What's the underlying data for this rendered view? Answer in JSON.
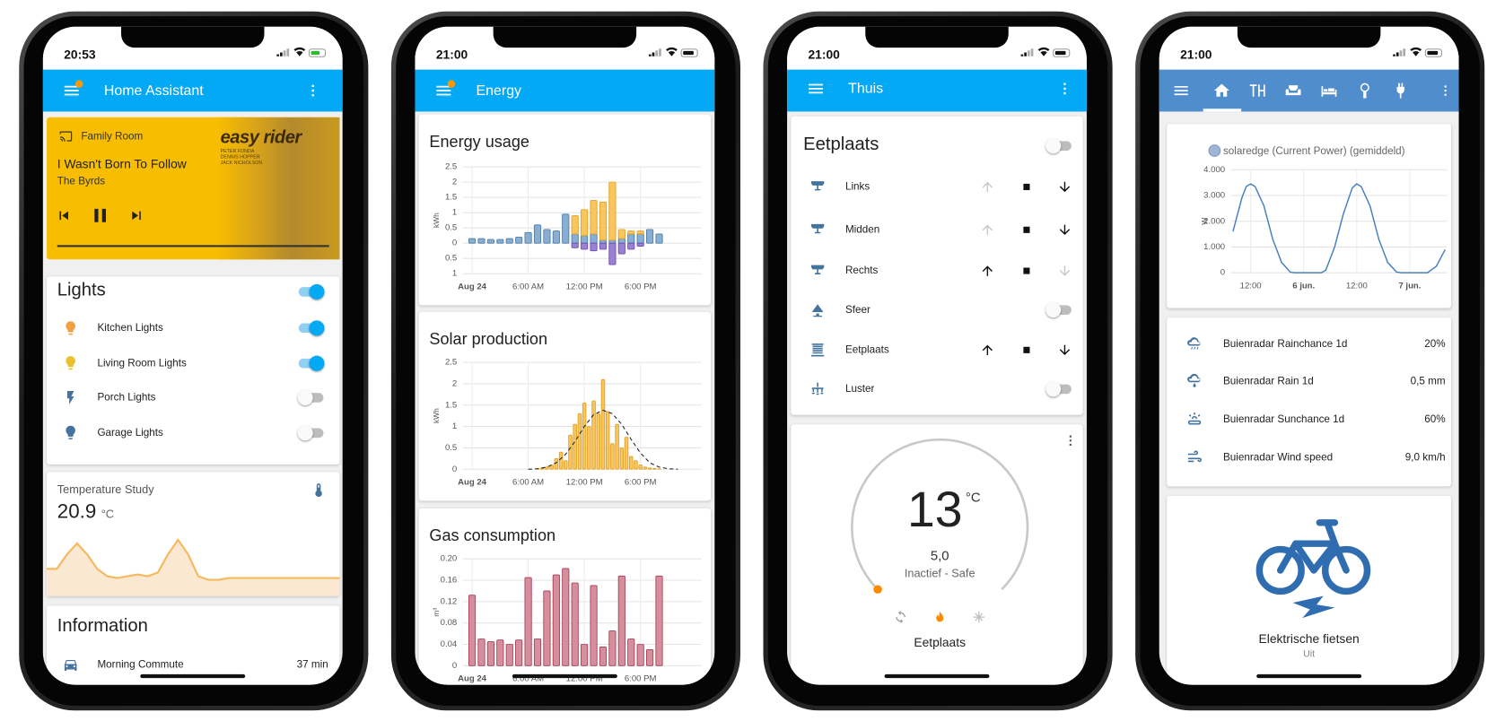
{
  "phones": [
    {
      "time": "20:53",
      "app_bar": "Home Assistant",
      "media": {
        "source": "Family Room",
        "title": "I Wasn't Born To Follow",
        "artist": "The Byrds",
        "art_title": "easy rider",
        "art_credits": [
          "PETER FONDA",
          "DENNIS HOPPER",
          "JACK NICHOLSON"
        ]
      },
      "lights": {
        "title": "Lights",
        "on": true,
        "items": [
          {
            "name": "Kitchen Lights",
            "on": true
          },
          {
            "name": "Living Room Lights",
            "on": true
          },
          {
            "name": "Porch Lights",
            "on": false
          },
          {
            "name": "Garage Lights",
            "on": false
          }
        ]
      },
      "temperature": {
        "name": "Temperature Study",
        "value": "20.9",
        "unit": "°C",
        "history": [
          21.2,
          21.2,
          21.6,
          21.9,
          21.6,
          21.2,
          21.0,
          20.95,
          21.0,
          21.05,
          21.0,
          21.1,
          21.6,
          22.0,
          21.6,
          21.0,
          20.9,
          20.9,
          20.95,
          20.95,
          20.95,
          20.95,
          20.95,
          20.95,
          20.95,
          20.95,
          20.95,
          20.95,
          20.95,
          20.95
        ]
      },
      "information": {
        "title": "Information",
        "items": [
          {
            "name": "Morning Commute",
            "value": "37 min"
          }
        ]
      }
    },
    {
      "time": "21:00",
      "app_bar": "Energy",
      "charts": [
        {
          "type": "bar",
          "title": "Energy usage",
          "y_label": "kWh",
          "stacked": true,
          "x": [
            0,
            1,
            2,
            3,
            4,
            5,
            6,
            7,
            8,
            9,
            10,
            11,
            12,
            13,
            14,
            15,
            16,
            17,
            18,
            19,
            20
          ],
          "xlim": [
            -1,
            24.5
          ],
          "xticks": [
            {
              "value": 0,
              "label": "Aug 24"
            },
            {
              "value": 6,
              "label": "6:00 AM"
            },
            {
              "value": 12,
              "label": "12:00 PM"
            },
            {
              "value": 18,
              "label": "6:00 PM"
            }
          ],
          "ylim": [
            -1,
            2.5
          ],
          "yticks": [
            {
              "value": -1,
              "label": "1"
            },
            {
              "value": -0.5,
              "label": "0.5"
            },
            0,
            0.5,
            1,
            1.5,
            2,
            2.5
          ],
          "grid": true,
          "series": [
            {
              "color": "#88afd2",
              "border_color": "#4a7ba6",
              "values": [
                0.15,
                0.15,
                0.12,
                0.12,
                0.15,
                0.2,
                0.35,
                0.6,
                0.45,
                0.4,
                0.95,
                0.3,
                0.25,
                0.3,
                0.1,
                0.1,
                0.15,
                0.3,
                0.3,
                0.45,
                0.3
              ]
            },
            {
              "color": "#f8c55e",
              "border_color": "#e39f20",
              "values": [
                0,
                0,
                0,
                0,
                0,
                0,
                0,
                0,
                0,
                0,
                0,
                0.6,
                0.85,
                1.1,
                1.25,
                1.9,
                0.3,
                0.1,
                0.1,
                0,
                0
              ]
            },
            {
              "color": "#9c80d2",
              "border_color": "#6a4bb0",
              "values": [
                0,
                0,
                0,
                0,
                0,
                0,
                0,
                0,
                0,
                0,
                0,
                -0.15,
                -0.2,
                -0.25,
                -0.2,
                -0.7,
                -0.35,
                -0.2,
                -0.1,
                0,
                0
              ]
            }
          ]
        },
        {
          "type": "bar",
          "title": "Solar production",
          "y_label": "kWh",
          "xlim": [
            -1,
            24.5
          ],
          "xticks": [
            {
              "value": 0,
              "label": "Aug 24"
            },
            {
              "value": 6,
              "label": "6:00 AM"
            },
            {
              "value": 12,
              "label": "12:00 PM"
            },
            {
              "value": 18,
              "label": "6:00 PM"
            }
          ],
          "ylim": [
            0,
            2.5
          ],
          "yticks": [
            0,
            0.5,
            1,
            1.5,
            2,
            2.5
          ],
          "grid": true,
          "series": [
            {
              "type": "bar",
              "color": "#f8c55e",
              "border_color": "#e39f20",
              "x": [
                7,
                7.5,
                8,
                8.5,
                9,
                9.5,
                10,
                10.5,
                11,
                11.5,
                12,
                12.5,
                13,
                13.5,
                14,
                14.5,
                15,
                15.5,
                16,
                16.5,
                17,
                17.5,
                18,
                18.5,
                19,
                19.5,
                20
              ],
              "values": [
                0.02,
                0.03,
                0.05,
                0.1,
                0.25,
                0.4,
                0.2,
                0.8,
                1.05,
                1.3,
                1.55,
                1.0,
                1.6,
                1.3,
                2.1,
                1.35,
                0.6,
                1.05,
                0.5,
                0.75,
                0.3,
                0.2,
                0.1,
                0.05,
                0.03,
                0.02,
                0.01
              ]
            },
            {
              "type": "line",
              "dashed": true,
              "color": "#222222",
              "x": [
                6,
                7,
                8,
                9,
                10,
                11,
                12,
                13,
                14,
                15,
                16,
                17,
                18,
                19,
                20,
                21,
                22
              ],
              "values": [
                0,
                0.01,
                0.05,
                0.15,
                0.35,
                0.65,
                1.0,
                1.28,
                1.38,
                1.3,
                1.05,
                0.7,
                0.38,
                0.15,
                0.05,
                0.01,
                0
              ]
            }
          ]
        },
        {
          "type": "bar",
          "title": "Gas consumption",
          "y_label": "m³",
          "x": [
            0,
            1,
            2,
            3,
            4,
            5,
            6,
            7,
            8,
            9,
            10,
            11,
            12,
            13,
            14,
            15,
            16,
            17,
            18,
            19,
            20
          ],
          "xlim": [
            -1,
            24.5
          ],
          "xticks": [
            {
              "value": 0,
              "label": "Aug 24"
            },
            {
              "value": 6,
              "label": "6:00 AM"
            },
            {
              "value": 12,
              "label": "12:00 PM"
            },
            {
              "value": 18,
              "label": "6:00 PM"
            }
          ],
          "ylim": [
            0,
            0.2
          ],
          "yticks": [
            0,
            0.04,
            0.08,
            0.12,
            0.16,
            {
              "value": 0.2,
              "label": "0.20"
            }
          ],
          "grid": true,
          "series": [
            {
              "color": "#d68e9d",
              "border_color": "#a33c55",
              "values": [
                0.132,
                0.05,
                0.045,
                0.048,
                0.04,
                0.048,
                0.165,
                0.05,
                0.14,
                0.17,
                0.182,
                0.155,
                0.04,
                0.15,
                0.035,
                0.065,
                0.168,
                0.05,
                0.04,
                0.03,
                0.168
              ]
            }
          ]
        }
      ]
    },
    {
      "time": "21:00",
      "app_bar": "Thuis",
      "card": {
        "title": "Eetplaats",
        "on": false,
        "rows": [
          {
            "name": "Links",
            "control": "cover",
            "up_enabled": false,
            "down_enabled": true
          },
          {
            "name": "Midden",
            "control": "cover",
            "up_enabled": false,
            "down_enabled": true
          },
          {
            "name": "Rechts",
            "control": "cover",
            "up_enabled": true,
            "down_enabled": false
          },
          {
            "name": "Sfeer",
            "control": "toggle",
            "on": false
          },
          {
            "name": "Eetplaats",
            "control": "cover",
            "up_enabled": true,
            "down_enabled": true
          },
          {
            "name": "Luster",
            "control": "toggle",
            "on": false
          }
        ]
      },
      "thermostat": {
        "temperature": "13",
        "unit": "°C",
        "target": "5,0",
        "state": "Inactief - Safe",
        "name": "Eetplaats"
      }
    },
    {
      "time": "21:00",
      "chart": {
        "type": "line",
        "y_label": "W",
        "xlim": [
          7.5,
          56.5
        ],
        "xticks": [
          {
            "value": 12,
            "label": "12:00"
          },
          {
            "value": 24,
            "label": "6 jun."
          },
          {
            "value": 36,
            "label": "12:00"
          },
          {
            "value": 48,
            "label": "7 jun."
          }
        ],
        "ylim": [
          0,
          4000
        ],
        "yticks": [
          0,
          {
            "value": 1000,
            "label": "1.000"
          },
          {
            "value": 2000,
            "label": "2.000"
          },
          {
            "value": 3000,
            "label": "3.000"
          },
          {
            "value": 4000,
            "label": "4.000"
          }
        ],
        "grid": true,
        "series": [
          {
            "type": "line",
            "name": "solaredge (Current Power) (gemiddeld)",
            "color": "#4a80c0",
            "marker_color": "#9db6d3",
            "x": [
              8,
              10,
              11,
              12,
              13,
              15,
              17,
              19,
              21,
              22,
              28,
              29,
              31,
              33,
              35,
              36,
              37,
              39,
              41,
              43,
              45,
              46,
              52,
              54,
              56
            ],
            "values": [
              1600,
              2900,
              3350,
              3450,
              3350,
              2600,
              1300,
              400,
              20,
              0,
              0,
              100,
              1000,
              2300,
              3300,
              3450,
              3350,
              2600,
              1300,
              400,
              30,
              0,
              0,
              250,
              900
            ]
          }
        ]
      },
      "sensors": [
        {
          "name": "Buienradar Rainchance 1d",
          "value": "20%"
        },
        {
          "name": "Buienradar Rain 1d",
          "value": "0,5 mm"
        },
        {
          "name": "Buienradar Sunchance 1d",
          "value": "60%"
        },
        {
          "name": "Buienradar Wind speed",
          "value": "9,0 km/h"
        }
      ],
      "bike": {
        "name": "Elektrische fietsen",
        "state": "Uit"
      }
    }
  ]
}
